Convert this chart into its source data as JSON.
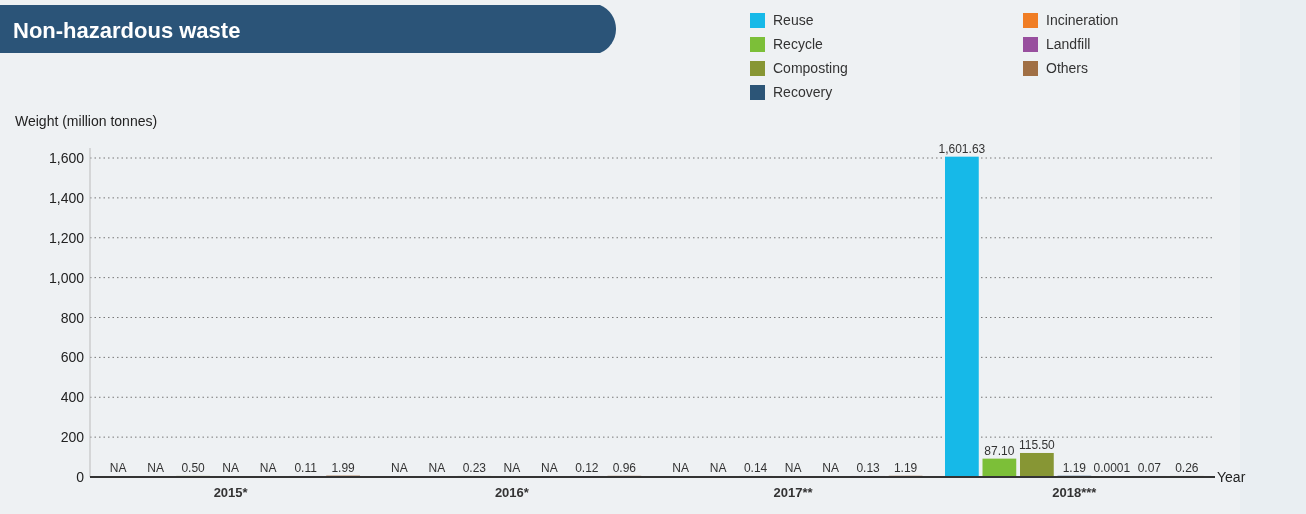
{
  "chart_data": {
    "type": "bar",
    "title": "Non-hazardous waste",
    "ylabel": "Weight (million tonnes)",
    "xlabel": "Year",
    "categories": [
      "2015*",
      "2016*",
      "2017**",
      "2018***"
    ],
    "series": [
      {
        "name": "Reuse",
        "color": "#16b9e8",
        "values": [
          null,
          null,
          null,
          1601.63
        ],
        "value_labels": [
          "NA",
          "NA",
          "NA",
          "1,601.63"
        ]
      },
      {
        "name": "Recycle",
        "color": "#7cbf38",
        "values": [
          null,
          null,
          null,
          87.1
        ],
        "value_labels": [
          "NA",
          "NA",
          "NA",
          "87.10"
        ]
      },
      {
        "name": "Composting",
        "color": "#879634",
        "values": [
          0.5,
          0.23,
          0.14,
          115.5
        ],
        "value_labels": [
          "0.50",
          "0.23",
          "0.14",
          "115.50"
        ]
      },
      {
        "name": "Recovery",
        "color": "#2c5577",
        "values": [
          null,
          null,
          null,
          1.19
        ],
        "value_labels": [
          "NA",
          "NA",
          "NA",
          "1.19"
        ]
      },
      {
        "name": "Incineration",
        "color": "#f07d24",
        "values": [
          null,
          null,
          null,
          0.0001
        ],
        "value_labels": [
          "NA",
          "NA",
          "NA",
          "0.0001"
        ]
      },
      {
        "name": "Landfill",
        "color": "#984f9e",
        "values": [
          0.11,
          0.12,
          0.13,
          0.07
        ],
        "value_labels": [
          "0.11",
          "0.12",
          "0.13",
          "0.07"
        ]
      },
      {
        "name": "Others",
        "color": "#a06f44",
        "values": [
          1.99,
          0.96,
          1.19,
          0.26
        ],
        "value_labels": [
          "1.99",
          "0.96",
          "1.19",
          "0.26"
        ]
      }
    ],
    "ylim": [
      0,
      1650
    ],
    "yticks": [
      0,
      200,
      400,
      600,
      800,
      {
        "value": 1000,
        "label": "1,000"
      },
      {
        "value": 1200,
        "label": "1,200"
      },
      {
        "value": 1400,
        "label": "1,400"
      },
      {
        "value": 1600,
        "label": "1,600"
      }
    ],
    "grid": "y",
    "legend": "top right"
  }
}
